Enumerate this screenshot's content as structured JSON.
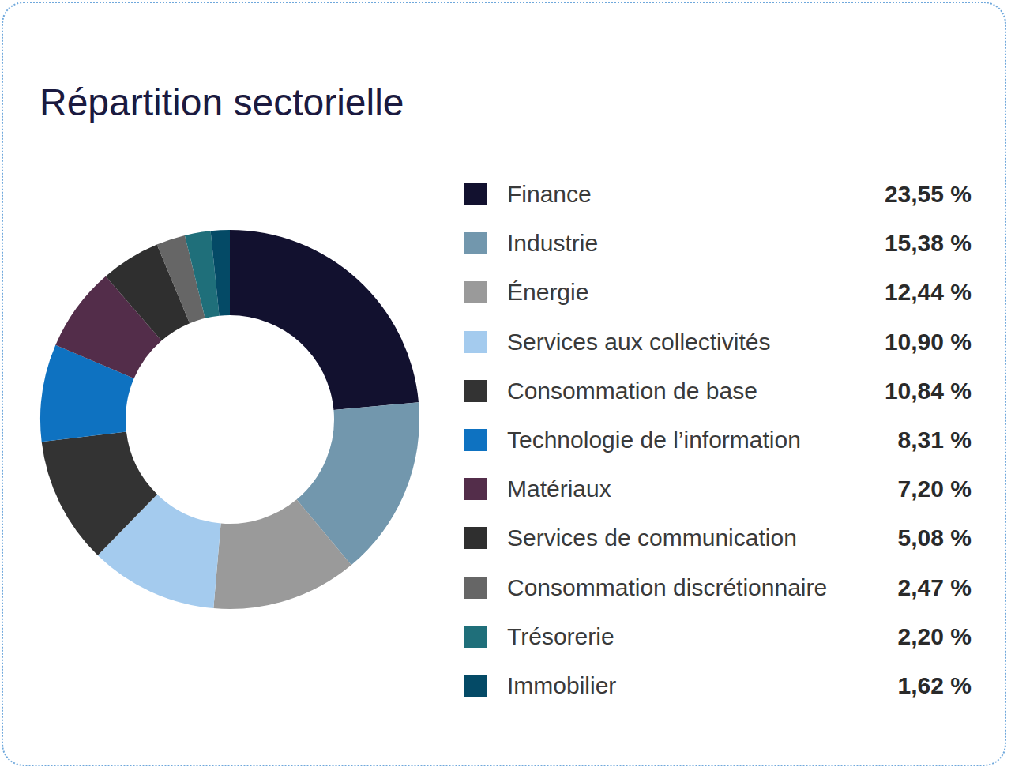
{
  "chart_data": {
    "type": "pie",
    "title": "Répartition sectorielle",
    "categories": [
      "Finance",
      "Industrie",
      "Énergie",
      "Services aux collectivités",
      "Consommation de base",
      "Technologie de l’information",
      "Matériaux",
      "Services de communication",
      "Consommation discrétionnaire",
      "Trésorerie",
      "Immobilier"
    ],
    "values": [
      23.55,
      15.38,
      12.44,
      10.9,
      10.84,
      8.31,
      7.2,
      5.08,
      2.47,
      2.2,
      1.62
    ],
    "value_labels": [
      "23,55 %",
      "15,38 %",
      "12,44 %",
      "10,90 %",
      "10,84 %",
      "8,31 %",
      "7,20 %",
      "5,08 %",
      "2,47 %",
      "2,20 %",
      "1,62 %"
    ],
    "colors": [
      "#12112f",
      "#7297ad",
      "#9a9a9a",
      "#a4cbee",
      "#333333",
      "#0e72c1",
      "#532d4a",
      "#2f2f2f",
      "#666666",
      "#1f6f7a",
      "#044a66"
    ],
    "legend": "right"
  }
}
